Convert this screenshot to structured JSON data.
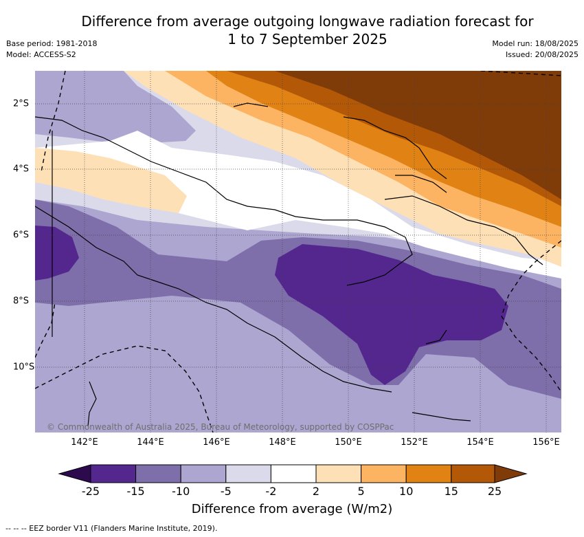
{
  "title_line1": "Difference from average outgoing longwave radiation forecast for",
  "title_line2": "1 to 7 September 2025",
  "meta_left": [
    "Base period: 1981-2018",
    "Model: ACCESS-S2"
  ],
  "meta_right": [
    "Model run: 18/08/2025",
    "Issued: 20/08/2025"
  ],
  "axes": {
    "x_ticks": [
      "142°E",
      "144°E",
      "146°E",
      "148°E",
      "150°E",
      "152°E",
      "154°E",
      "156°E"
    ],
    "y_ticks": [
      "2°S",
      "4°S",
      "6°S",
      "8°S",
      "10°S"
    ],
    "lon_range": [
      140.5,
      156.5
    ],
    "lat_range": [
      -12,
      -1
    ],
    "gridlines": "dotted"
  },
  "copyright": "© Commonwealth of Australia 2025, Bureau of Meteorology, supported by COSPPac",
  "colorbar": {
    "ticks": [
      "-25",
      "-15",
      "-10",
      "-5",
      "-2",
      "2",
      "5",
      "10",
      "15",
      "25"
    ],
    "colors": [
      "#2d0a4e",
      "#54278f",
      "#7e6fab",
      "#aca6d0",
      "#dadaeb",
      "#ffffff",
      "#fee0b6",
      "#fdb462",
      "#e08214",
      "#b35806",
      "#7f3b08"
    ],
    "label": "Difference from average (W/m2)"
  },
  "footer": "-- -- -- EEZ border V11 (Flanders Marine Institute, 2019).",
  "map_regions": [
    {
      "name": "strong-negative-anomaly",
      "category": "-25 to -15",
      "location": "Solomon Sea / southeast Papua New Guinea"
    },
    {
      "name": "strong-negative-anomaly-west",
      "category": "-25 to -15",
      "location": "Western Papua"
    },
    {
      "name": "strong-positive-anomaly",
      "category": "15 to 25",
      "location": "Bismarck Sea / New Ireland"
    }
  ]
}
